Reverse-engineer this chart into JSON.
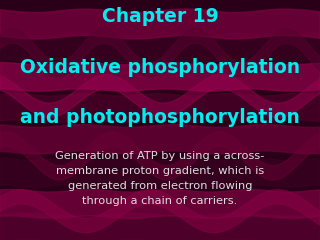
{
  "title_line1": "Chapter 19",
  "title_line2": "Oxidative phosphorylation",
  "title_line3": "and photophosphorylation",
  "body_text": "Generation of ATP by using a across-\nmembrane proton gradient, which is\ngenerated from electron flowing\nthrough a chain of carriers.",
  "title_color": "#00EEEE",
  "body_color": "#DDDDDD",
  "bg_base": "#2A0018",
  "wave_colors": [
    "#5A0030",
    "#7A0040",
    "#3A0020",
    "#6B0038",
    "#4A0028",
    "#8A0048",
    "#3A0020"
  ],
  "title_fontsize": 13.5,
  "body_fontsize": 8.2
}
